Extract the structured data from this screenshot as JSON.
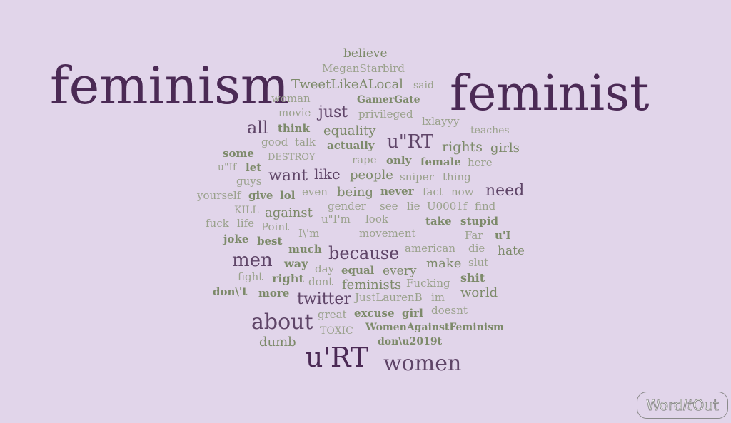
{
  "words": {
    "feminism": "feminism",
    "feminist": "feminist",
    "urt_big": "u'RT",
    "women": "women",
    "about": "about",
    "men": "men",
    "because": "because",
    "urt_quote": "u\"RT",
    "twitter": "twitter",
    "all": "all",
    "just": "just",
    "need": "need",
    "want": "want",
    "like": "like",
    "believe": "believe",
    "tweetlikealocal": "TweetLikeALocal",
    "meganstarbird": "MeganStarbird",
    "equality": "equality",
    "rights": "rights",
    "girls": "girls",
    "people": "people",
    "being": "being",
    "against": "against",
    "hate": "hate",
    "make": "make",
    "feminists": "feminists",
    "world": "world",
    "every": "every",
    "dumb": "dumb",
    "gamergate": "GamerGate",
    "woman": "woman",
    "said": "said",
    "movie": "movie",
    "privileged": "privileged",
    "lxlayyy": "lxlayyy",
    "teaches": "teaches",
    "think": "think",
    "good": "good",
    "talk": "talk",
    "actually": "actually",
    "some": "some",
    "destroy": "DESTROY",
    "rape": "rape",
    "only": "only",
    "female": "female",
    "here": "here",
    "uif": "u\"If",
    "let": "let",
    "guys": "guys",
    "sniper": "sniper",
    "thing": "thing",
    "yourself": "yourself",
    "give": "give",
    "lol": "lol",
    "even": "even",
    "never": "never",
    "fact": "fact",
    "now": "now",
    "kill": "KILL",
    "gender": "gender",
    "see": "see",
    "lie": "lie",
    "u0001f": "U0001f",
    "find": "find",
    "fuck": "fuck",
    "life": "life",
    "uim": "u\"I'm",
    "look": "look",
    "take": "take",
    "stupid": "stupid",
    "point": "Point",
    "im_esc": "I\\'m",
    "movement": "movement",
    "far": "Far",
    "ui": "u'I",
    "joke": "joke",
    "best": "best",
    "much": "much",
    "american": "american",
    "die": "die",
    "way": "way",
    "slut": "slut",
    "fight": "fight",
    "day": "day",
    "right": "right",
    "equal": "equal",
    "shit": "shit",
    "dont": "dont",
    "fucking": "Fucking",
    "dont_esc": "don\\'t",
    "more": "more",
    "justlaurenb": "JustLaurenB",
    "im": "im",
    "great": "great",
    "excuse": "excuse",
    "girl": "girl",
    "doesnt": "doesnt",
    "toxic": "TOXIC",
    "womenagainstfeminism": "WomenAgainstFeminism",
    "don2019t": "don\\u2019t"
  },
  "logo": {
    "part1": "Word",
    "part2": "It",
    "part3": "Out"
  },
  "colors": {
    "background": "#e1d5ea",
    "dark": "#4b2a55",
    "medium": "#5f4568",
    "green": "#7d8a6a",
    "light": "#9aa18c"
  }
}
